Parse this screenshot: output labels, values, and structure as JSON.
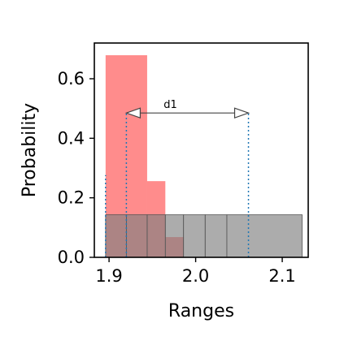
{
  "chart_data": {
    "type": "bar",
    "title": "",
    "xlabel": "Ranges",
    "ylabel": "Probability",
    "xlim": [
      1.883,
      2.13
    ],
    "ylim": [
      0.0,
      0.72
    ],
    "x_ticks": [
      1.9,
      2.0,
      2.1
    ],
    "y_ticks": [
      0.0,
      0.2,
      0.4,
      0.6
    ],
    "x_tick_labels": [
      "1.9",
      "2.0",
      "2.1"
    ],
    "y_tick_labels": [
      "0.0",
      "0.2",
      "0.4",
      "0.6"
    ],
    "grid": false,
    "series": [
      {
        "color": "#ff0000",
        "opacity": 0.45,
        "bins": [
          {
            "x0": 1.896,
            "x1": 1.944,
            "value": 0.679
          },
          {
            "x0": 1.944,
            "x1": 1.965,
            "value": 0.256
          },
          {
            "x0": 1.965,
            "x1": 1.986,
            "value": 0.068
          }
        ]
      },
      {
        "color": "#808080",
        "opacity": 0.65,
        "edge_color": "#555555",
        "bins": [
          {
            "x0": 1.896,
            "x1": 1.92,
            "value": 0.143
          },
          {
            "x0": 1.92,
            "x1": 1.944,
            "value": 0.143
          },
          {
            "x0": 1.944,
            "x1": 1.965,
            "value": 0.143
          },
          {
            "x0": 1.965,
            "x1": 1.986,
            "value": 0.143
          },
          {
            "x0": 1.986,
            "x1": 2.011,
            "value": 0.143
          },
          {
            "x0": 2.011,
            "x1": 2.036,
            "value": 0.143
          },
          {
            "x0": 2.036,
            "x1": 2.123,
            "value": 0.143
          }
        ]
      }
    ],
    "vlines": [
      {
        "x": 1.896,
        "y": 0.276,
        "color": "#1f77b4"
      },
      {
        "x": 1.92,
        "y": 0.485,
        "color": "#1f77b4"
      },
      {
        "x": 2.061,
        "y": 0.485,
        "color": "#1f77b4"
      }
    ],
    "annotation": {
      "text": "d1",
      "x_start": 1.92,
      "x_end": 2.061,
      "y": 0.485,
      "style": "double-arrow",
      "color": "#444444"
    }
  }
}
